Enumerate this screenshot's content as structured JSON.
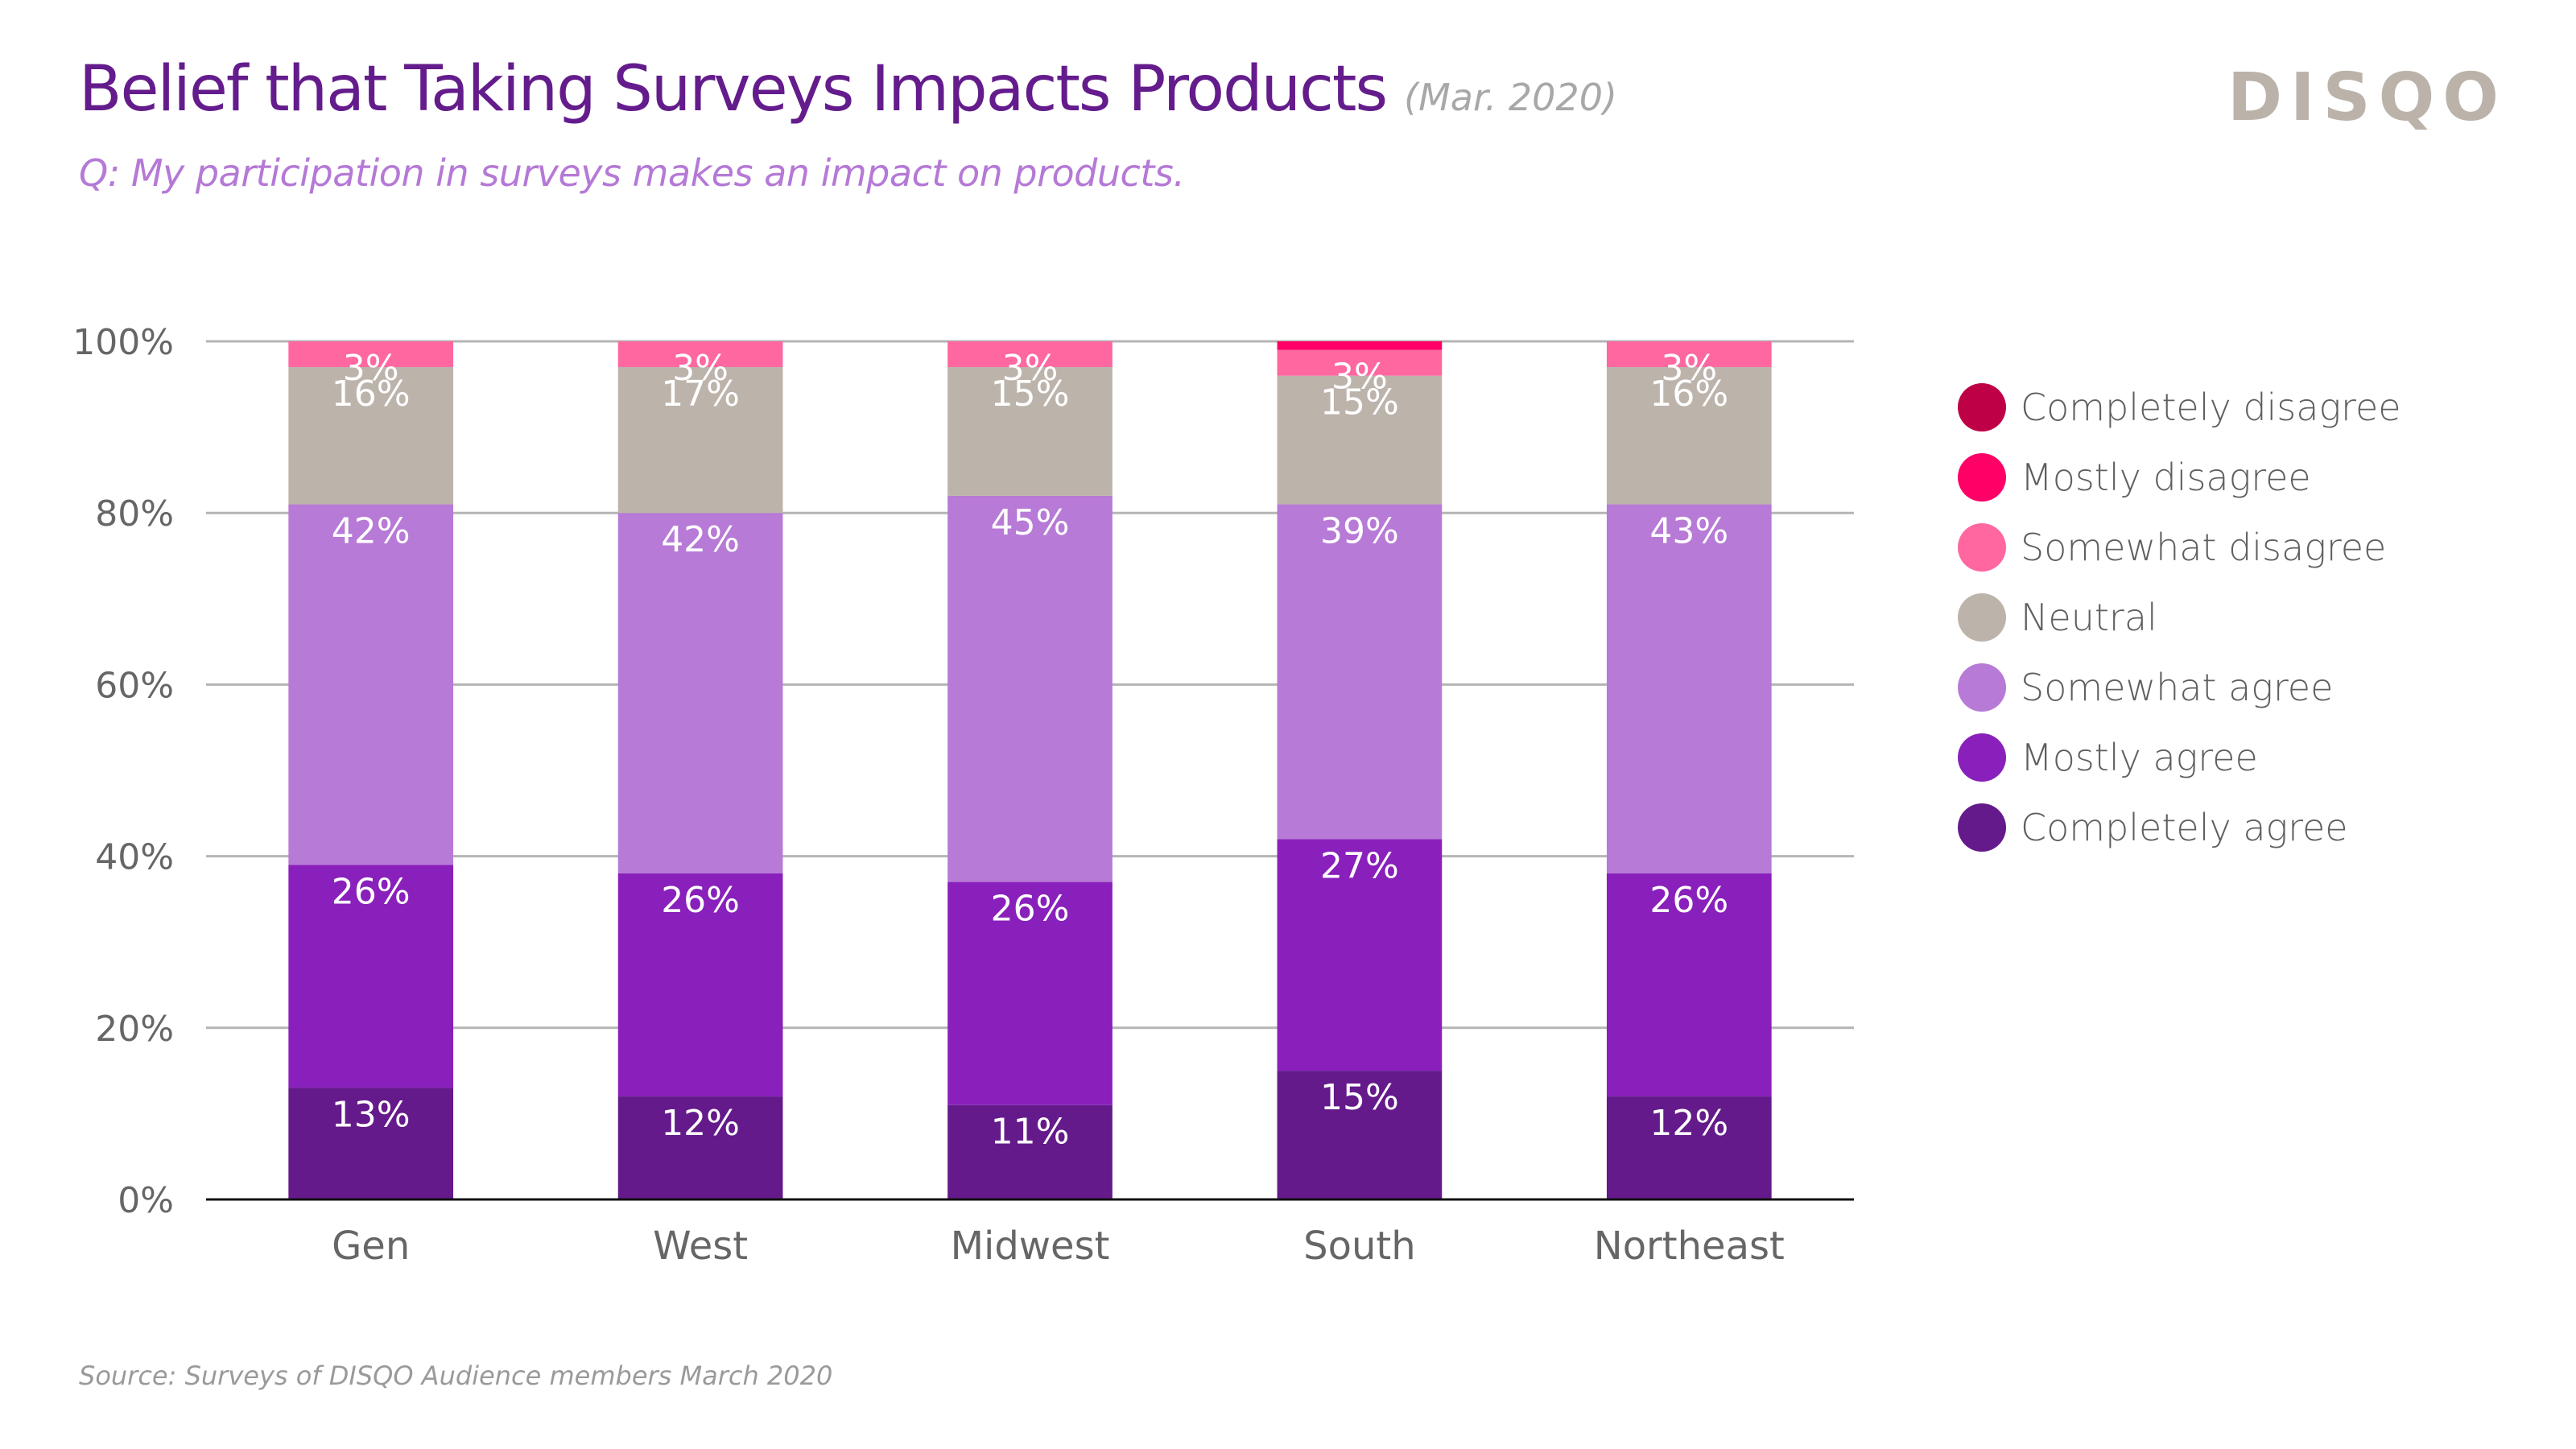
{
  "header": {
    "title": "Belief that Taking Surveys Impacts Products",
    "title_date": "(Mar. 2020)",
    "subtitle": "Q: My participation in surveys makes an impact on products.",
    "logo": "DISQO"
  },
  "footer": {
    "source": "Source: Surveys of DISQO Audience members March 2020"
  },
  "chart_data": {
    "type": "bar",
    "stacked": true,
    "title": "Belief that Taking Surveys Impacts Products",
    "subtitle": "Q: My participation in surveys makes an impact on products.",
    "xlabel": "",
    "ylabel": "",
    "ylim": [
      0,
      100
    ],
    "yticks": [
      0,
      20,
      40,
      60,
      80,
      100
    ],
    "ytick_labels": [
      "0%",
      "20%",
      "40%",
      "60%",
      "80%",
      "100%"
    ],
    "grid": true,
    "legend_position": "right",
    "categories": [
      "Gen",
      "West",
      "Midwest",
      "South",
      "Northeast"
    ],
    "series": [
      {
        "name": "Completely agree",
        "color": "#641a8a",
        "values": [
          13,
          12,
          11,
          15,
          12
        ],
        "labels": [
          "13%",
          "12%",
          "11%",
          "15%",
          "12%"
        ]
      },
      {
        "name": "Mostly agree",
        "color": "#8920bb",
        "values": [
          26,
          26,
          26,
          27,
          26
        ],
        "labels": [
          "26%",
          "26%",
          "26%",
          "27%",
          "26%"
        ]
      },
      {
        "name": "Somewhat agree",
        "color": "#b77ad6",
        "values": [
          42,
          42,
          45,
          39,
          43
        ],
        "labels": [
          "42%",
          "42%",
          "45%",
          "39%",
          "43%"
        ]
      },
      {
        "name": "Neutral",
        "color": "#bcb3ab",
        "values": [
          16,
          17,
          15,
          15,
          16
        ],
        "labels": [
          "16%",
          "17%",
          "15%",
          "15%",
          "16%"
        ]
      },
      {
        "name": "Somewhat disagree",
        "color": "#ff67a1",
        "values": [
          3,
          3,
          3,
          3,
          3
        ],
        "labels": [
          "3%",
          "3%",
          "3%",
          "3%",
          "3%"
        ]
      },
      {
        "name": "Mostly disagree",
        "color": "#ff0066",
        "values": [
          1,
          1,
          1,
          1,
          1
        ],
        "labels": [
          "",
          "",
          "",
          "",
          ""
        ]
      },
      {
        "name": "Completely disagree",
        "color": "#be0047",
        "values": [
          0,
          0.3,
          0,
          0,
          0
        ],
        "labels": [
          "",
          "",
          "",
          "",
          ""
        ]
      }
    ]
  },
  "legend": {
    "items": [
      {
        "label": "Completely disagree",
        "color": "#be0047"
      },
      {
        "label": "Mostly disagree",
        "color": "#ff0066"
      },
      {
        "label": "Somewhat disagree",
        "color": "#ff67a1"
      },
      {
        "label": "Neutral",
        "color": "#bcb3ab"
      },
      {
        "label": "Somewhat agree",
        "color": "#b77ad6"
      },
      {
        "label": "Mostly agree",
        "color": "#8920bb"
      },
      {
        "label": "Completely agree",
        "color": "#641a8a"
      }
    ]
  }
}
